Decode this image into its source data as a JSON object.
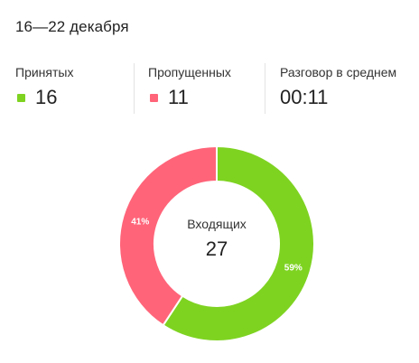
{
  "header": {
    "title": "16—22 декабря"
  },
  "stats": {
    "accepted": {
      "label": "Принятых",
      "value": "16"
    },
    "missed": {
      "label": "Пропущенных",
      "value": "11"
    },
    "average": {
      "label": "Разговор в среднем",
      "value": "00:11"
    }
  },
  "colors": {
    "accepted": "#7ed321",
    "missed": "#ff6479"
  },
  "donut": {
    "center_label": "Входящих",
    "center_value": "27"
  },
  "chart_data": {
    "type": "pie",
    "title": "",
    "categories": [
      "Принятых",
      "Пропущенных"
    ],
    "values": [
      16,
      11
    ],
    "percent_labels": [
      "59%",
      "41%"
    ],
    "colors": [
      "#7ed321",
      "#ff6479"
    ],
    "donut": true,
    "legend": "none"
  }
}
